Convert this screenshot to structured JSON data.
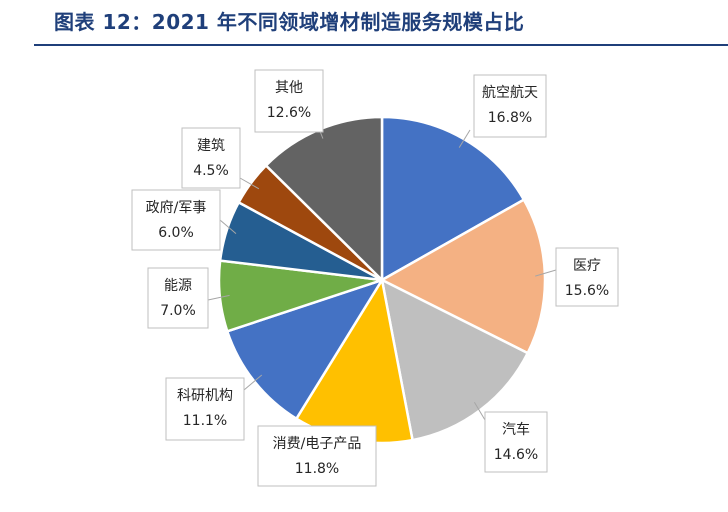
{
  "title": "图表 12：2021 年不同领域增材制造服务规模占比",
  "chart_data": {
    "type": "pie",
    "title": "图表 12：2021 年不同领域增材制造服务规模占比",
    "slices": [
      {
        "label": "航空航天",
        "value": 16.8,
        "value_label": "16.8%",
        "color": "#4472c4"
      },
      {
        "label": "医疗",
        "value": 15.6,
        "value_label": "15.6%",
        "color": "#f4b183"
      },
      {
        "label": "汽车",
        "value": 14.6,
        "value_label": "14.6%",
        "color": "#bfbfbf"
      },
      {
        "label": "消费/电子产品",
        "value": 11.8,
        "value_label": "11.8%",
        "color": "#ffc000"
      },
      {
        "label": "科研机构",
        "value": 11.1,
        "value_label": "11.1%",
        "color": "#4472c4"
      },
      {
        "label": "能源",
        "value": 7.0,
        "value_label": "7.0%",
        "color": "#70ad47"
      },
      {
        "label": "政府/军事",
        "value": 6.0,
        "value_label": "6.0%",
        "color": "#255e91"
      },
      {
        "label": "建筑",
        "value": 4.5,
        "value_label": "4.5%",
        "color": "#9e480e"
      },
      {
        "label": "其他",
        "value": 12.6,
        "value_label": "12.6%",
        "color": "#636363"
      }
    ],
    "start_angle_deg": 0,
    "direction": "clockwise",
    "labels": "callouts-outside"
  }
}
